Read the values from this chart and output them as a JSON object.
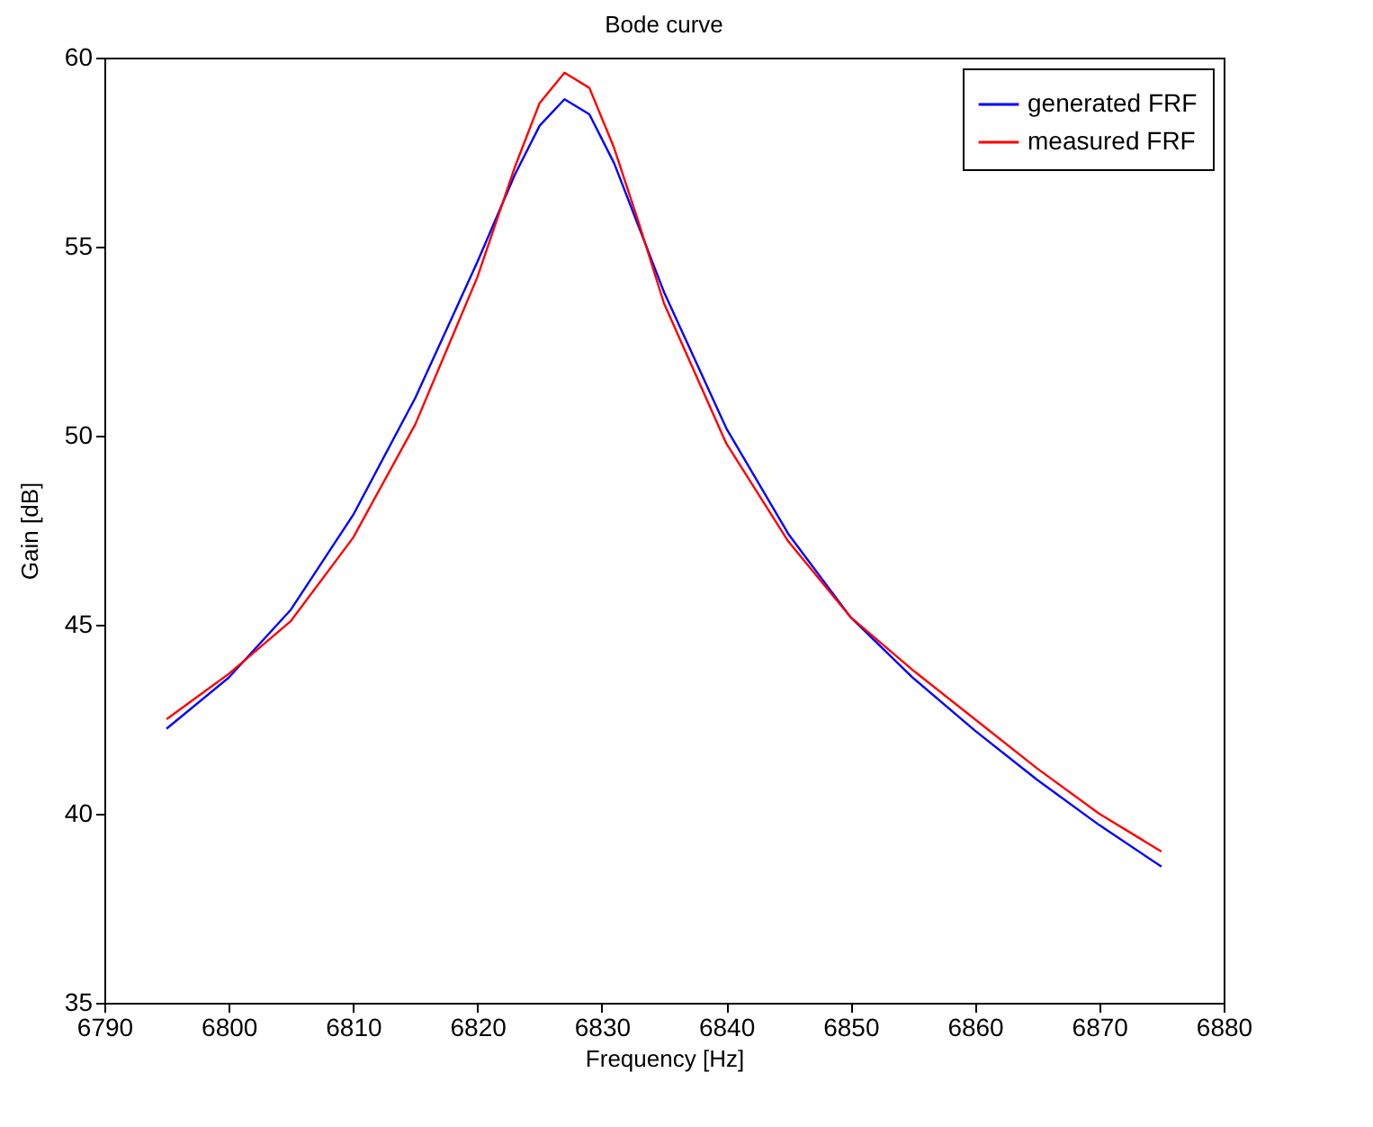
{
  "chart_data": {
    "type": "line",
    "title": "Bode curve",
    "xlabel": "Frequency  [Hz]",
    "ylabel": "Gain  [dB]",
    "x": [
      6795,
      6800,
      6805,
      6810,
      6815,
      6820,
      6823,
      6825,
      6827,
      6829,
      6831,
      6833,
      6835,
      6840,
      6845,
      6850,
      6855,
      6860,
      6865,
      6870,
      6875
    ],
    "series": [
      {
        "name": "generated FRF",
        "color": "#0000ff",
        "values": [
          42.25,
          43.6,
          45.4,
          47.9,
          51.0,
          54.6,
          56.9,
          58.2,
          58.9,
          58.5,
          57.2,
          55.5,
          53.8,
          50.2,
          47.4,
          45.2,
          43.6,
          42.2,
          40.9,
          39.7,
          38.6
        ]
      },
      {
        "name": "measured FRF",
        "color": "#ff0000",
        "values": [
          42.5,
          43.7,
          45.1,
          47.3,
          50.3,
          54.2,
          57.1,
          58.8,
          59.6,
          59.2,
          57.6,
          55.6,
          53.5,
          49.8,
          47.2,
          45.2,
          43.8,
          42.5,
          41.2,
          40.0,
          39.0
        ]
      }
    ],
    "xlim": [
      6790,
      6880
    ],
    "xticks": [
      6790,
      6800,
      6810,
      6820,
      6830,
      6840,
      6850,
      6860,
      6870,
      6880
    ],
    "ylim": [
      35,
      60
    ],
    "yticks": [
      35,
      40,
      45,
      50,
      55,
      60
    ],
    "grid": false,
    "legend": "top right",
    "line_style": "solid"
  }
}
